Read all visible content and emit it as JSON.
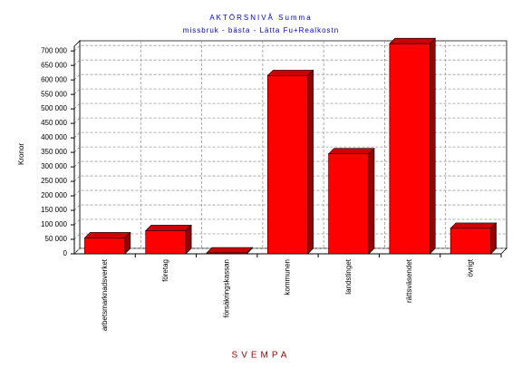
{
  "chart_data": {
    "type": "bar3d",
    "title": "AKTÖRSNIVÅ Summa",
    "subtitle": "missbruk - bästa - Lätta Fu+Realkostn",
    "x_label": "SVEMPA",
    "y_label": "Kronor",
    "categories": [
      "arbetsmarknadsverket",
      "företag",
      "försäkringskassan",
      "kommunen",
      "landstinget",
      "rättsväsendet",
      "övrigt"
    ],
    "values": [
      55000,
      80000,
      3000,
      615000,
      345000,
      725000,
      88000
    ],
    "color": "#ff0000",
    "ylim": [
      0,
      735000
    ],
    "yticks": [
      0,
      {
        "value": 50000,
        "label": "50 000"
      },
      {
        "value": 100000,
        "label": "100 000"
      },
      {
        "value": 150000,
        "label": "150 000"
      },
      {
        "value": 200000,
        "label": "200 000"
      },
      {
        "value": 250000,
        "label": "250 000"
      },
      {
        "value": 300000,
        "label": "300 000"
      },
      {
        "value": 350000,
        "label": "350 000"
      },
      {
        "value": 400000,
        "label": "400 000"
      },
      {
        "value": 450000,
        "label": "450 000"
      },
      {
        "value": 500000,
        "label": "500 000"
      },
      {
        "value": 550000,
        "label": "550 000"
      },
      {
        "value": 600000,
        "label": "600 000"
      },
      {
        "value": 650000,
        "label": "650 000"
      },
      {
        "value": 700000,
        "label": "700 000"
      }
    ],
    "grid": true
  }
}
